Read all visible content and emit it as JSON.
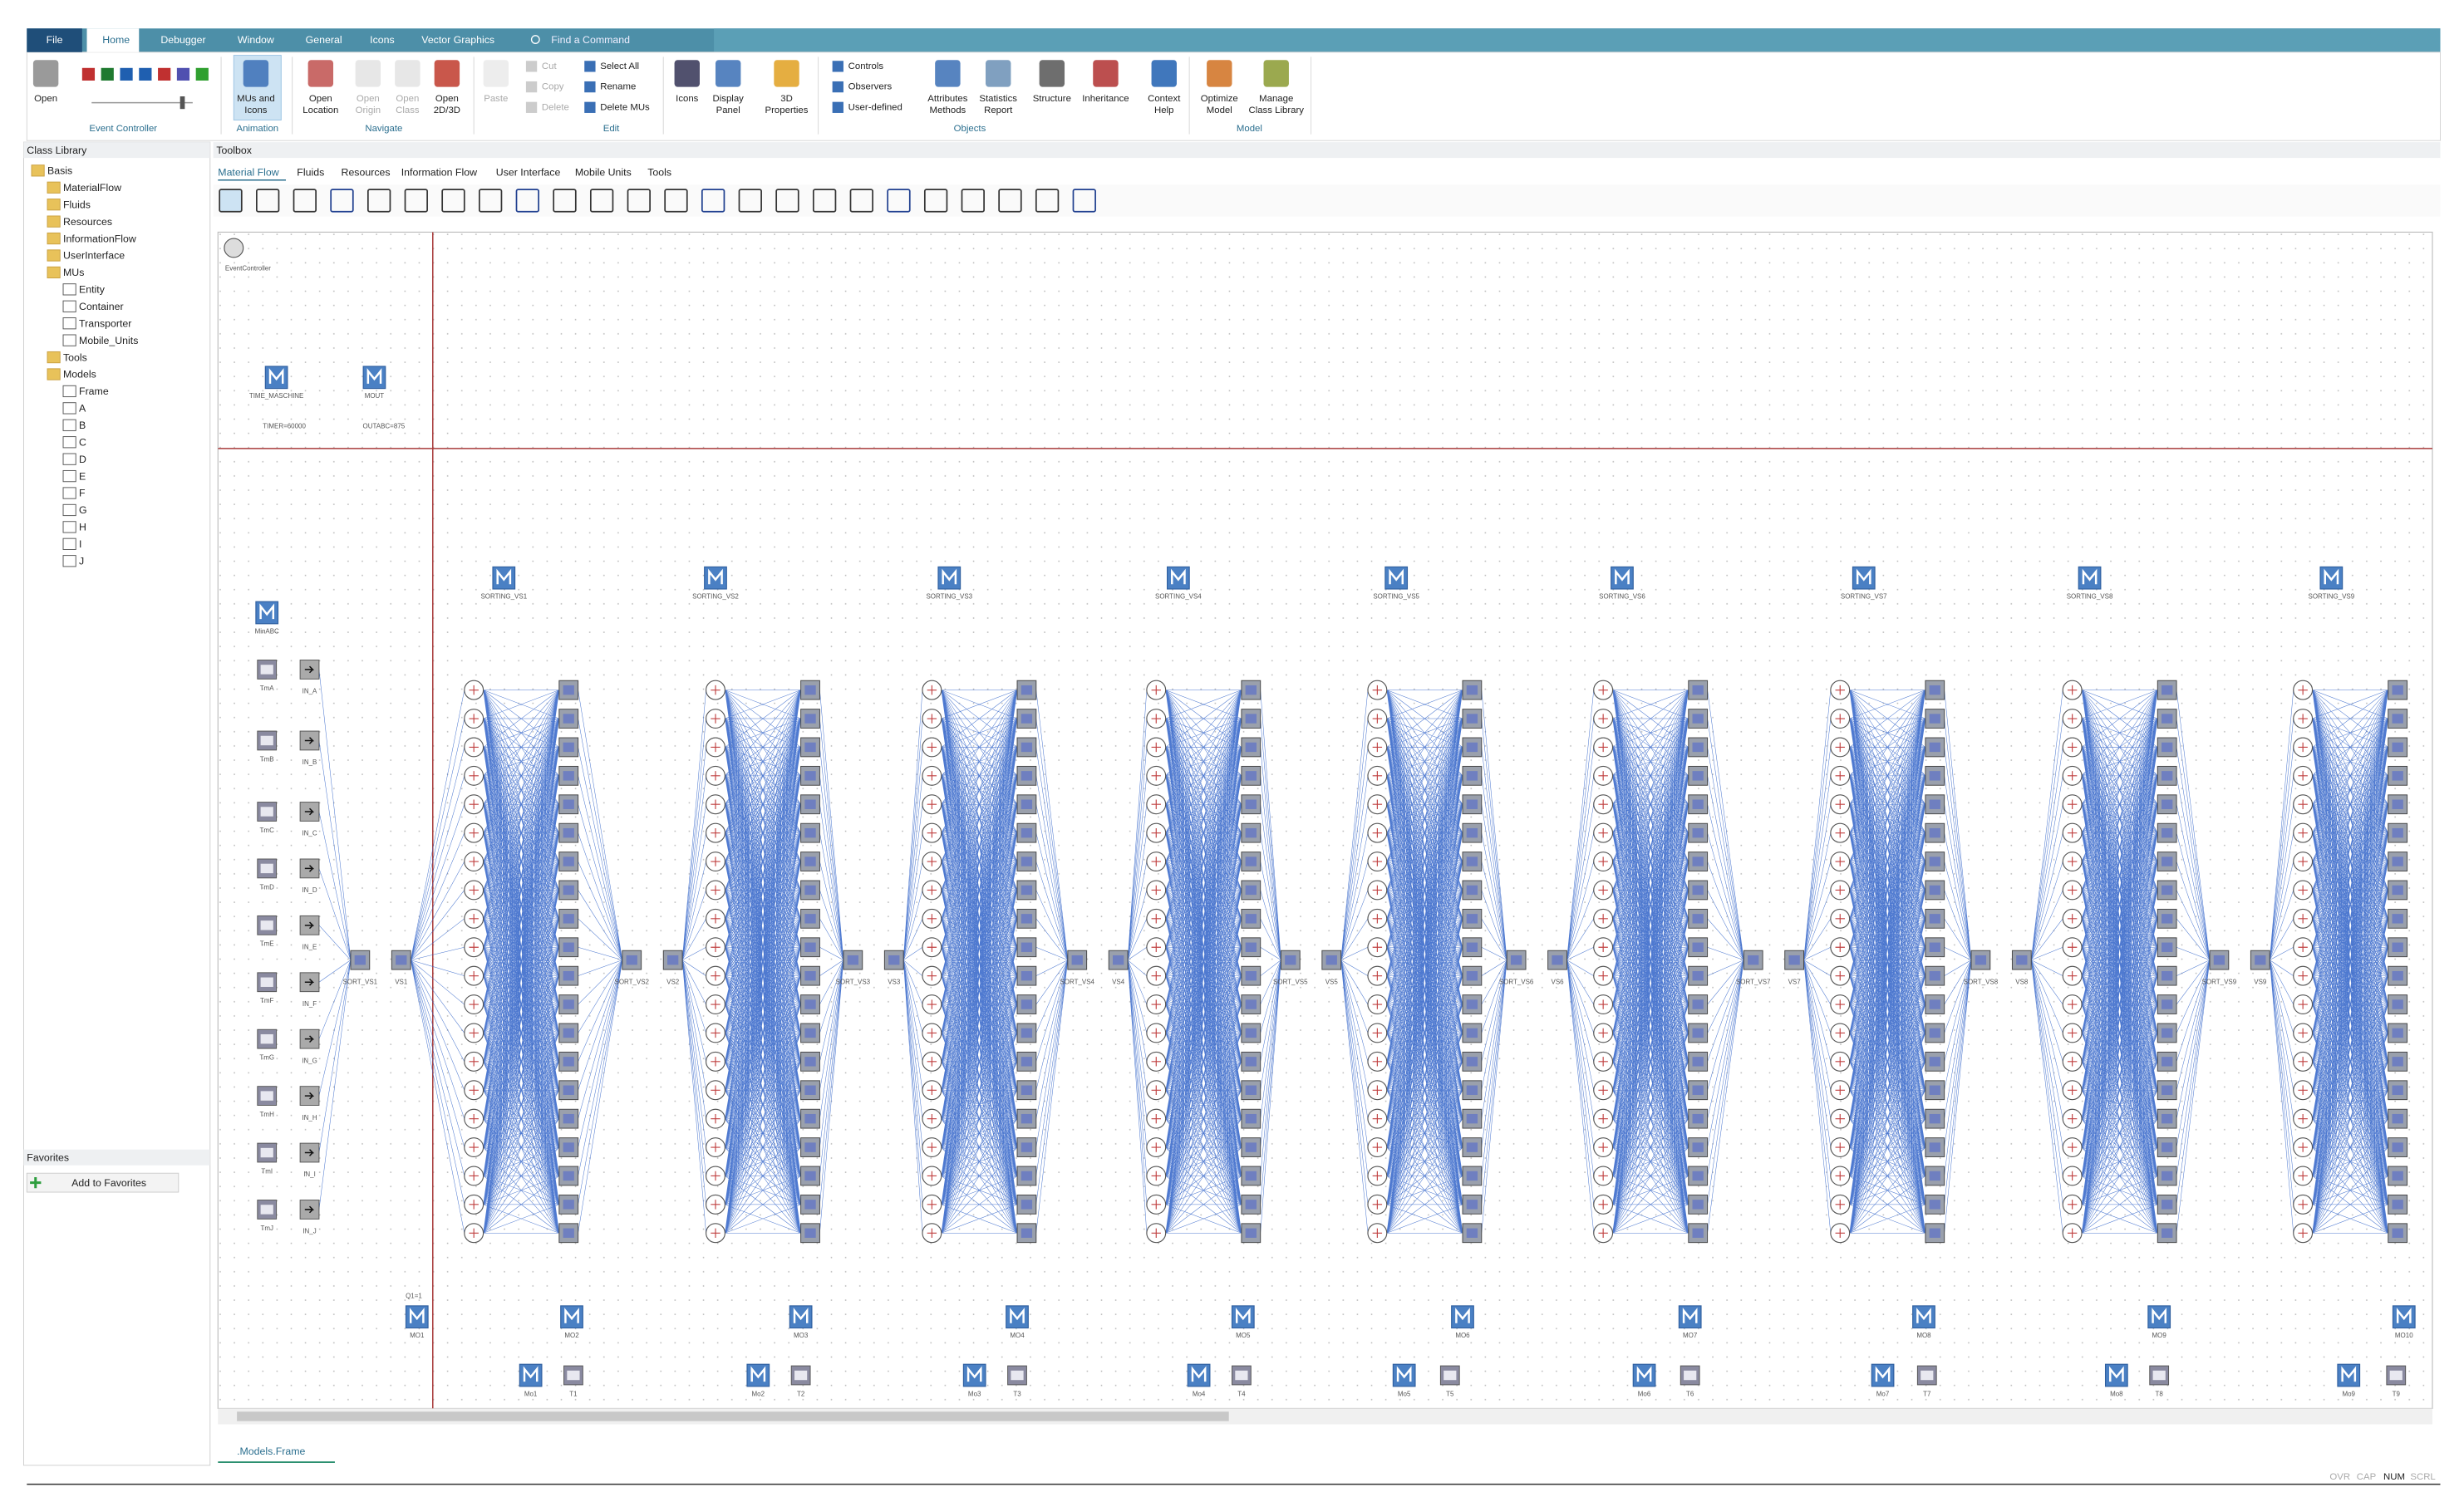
{
  "ribbon": {
    "tabs": [
      "File",
      "Home",
      "Debugger",
      "Window",
      "General",
      "Icons",
      "Vector Graphics"
    ],
    "search": "Find a Command",
    "buttons": [
      {
        "lines": [
          "Open"
        ]
      },
      {
        "lines": [
          "MUs and",
          "Icons"
        ]
      },
      {
        "lines": [
          "Open",
          "Location"
        ]
      },
      {
        "lines": [
          "Open",
          "Origin"
        ],
        "disabled": true
      },
      {
        "lines": [
          "Open",
          "Class"
        ],
        "disabled": true
      },
      {
        "lines": [
          "Open",
          "2D/3D"
        ]
      },
      {
        "lines": [
          "Paste"
        ],
        "disabled": true
      },
      {
        "lines": [
          "Icons"
        ]
      },
      {
        "lines": [
          "Display",
          "Panel"
        ]
      },
      {
        "lines": [
          "3D",
          "Properties"
        ]
      },
      {
        "lines": [
          "Attributes",
          "Methods"
        ]
      },
      {
        "lines": [
          "Statistics",
          "Report"
        ]
      },
      {
        "lines": [
          "Structure"
        ]
      },
      {
        "lines": [
          "Inheritance"
        ]
      },
      {
        "lines": [
          "Context",
          "Help"
        ]
      },
      {
        "lines": [
          "Optimize",
          "Model"
        ]
      },
      {
        "lines": [
          "Manage",
          "Class Library"
        ]
      }
    ],
    "small_buttons": [
      {
        "label": "Cut",
        "disabled": true
      },
      {
        "label": "Copy",
        "disabled": true
      },
      {
        "label": "Delete",
        "disabled": true
      },
      {
        "label": "Select All"
      },
      {
        "label": "Rename"
      },
      {
        "label": "Delete MUs"
      },
      {
        "label": "Controls"
      },
      {
        "label": "Observers"
      },
      {
        "label": "User-defined"
      }
    ],
    "groups": [
      "Event Controller",
      "Animation",
      "Navigate",
      "Edit",
      "Objects",
      "Model"
    ]
  },
  "class_library": {
    "title": "Class Library",
    "items": [
      "Basis",
      "MaterialFlow",
      "Fluids",
      "Resources",
      "InformationFlow",
      "UserInterface",
      "MUs",
      "Entity",
      "Container",
      "Transporter",
      "Mobile_Units",
      "Tools",
      "Models",
      "Frame",
      "A",
      "B",
      "C",
      "D",
      "E",
      "F",
      "G",
      "H",
      "I",
      "J"
    ]
  },
  "favorites": {
    "title": "Favorites",
    "button": "Add to Favorites"
  },
  "toolbox": {
    "title": "Toolbox",
    "tabs": [
      "Material Flow",
      "Fluids",
      "Resources",
      "Information Flow",
      "User Interface",
      "Mobile Units",
      "Tools"
    ]
  },
  "frame": {
    "event_controller": "EventController",
    "methods": [
      "TIME_MASCHINE",
      "MOUT"
    ],
    "method_notes": [
      "TIMER=60000",
      "OUTABC=875"
    ],
    "min_method": "MinABC",
    "sources": [
      "TmA",
      "TmB",
      "TmC",
      "TmD",
      "TmE",
      "TmF",
      "TmG",
      "TmH",
      "TmI",
      "TmJ"
    ],
    "inputs": [
      "IN_A",
      "IN_B",
      "IN_C",
      "IN_D",
      "IN_E",
      "IN_F",
      "IN_G",
      "IN_H",
      "IN_I",
      "IN_J"
    ],
    "sortings": [
      "SORTING_VS1",
      "SORTING_VS2",
      "SORTING_VS3",
      "SORTING_VS4",
      "SORTING_VS5",
      "SORTING_VS6",
      "SORTING_VS7",
      "SORTING_VS8",
      "SORTING_VS9"
    ],
    "sorts": [
      "SORT_VS1",
      "SORT_VS2",
      "SORT_VS3",
      "SORT_VS4",
      "SORT_VS5",
      "SORT_VS6",
      "SORT_VS7",
      "SORT_VS8",
      "SORT_VS9"
    ],
    "stores": [
      "VS1",
      "VS2",
      "VS3",
      "VS4",
      "VS5",
      "VS6",
      "VS7",
      "VS8",
      "VS9"
    ],
    "outputs": [
      "MO1",
      "MO2",
      "MO3",
      "MO4",
      "MO5",
      "MO6",
      "MO7",
      "MO8",
      "MO9",
      "MO10"
    ],
    "q_note": "Q1=1",
    "mos": [
      "Mo1",
      "Mo2",
      "Mo3",
      "Mo4",
      "Mo5",
      "Mo6",
      "Mo7",
      "Mo8",
      "Mo9"
    ],
    "tables": [
      "T1",
      "T2",
      "T3",
      "T4",
      "T5",
      "T6",
      "T7",
      "T8",
      "T9"
    ]
  },
  "document_tab": ".Models.Frame",
  "status": [
    "OVR",
    "CAP",
    "NUM",
    "SCRL"
  ]
}
